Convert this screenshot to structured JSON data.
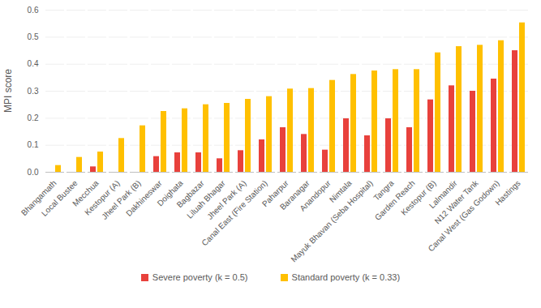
{
  "chart_data": {
    "type": "bar",
    "ylabel": "MPI score",
    "categories": [
      "Bhangamath",
      "Local Bustee",
      "Mecchua",
      "Kestopur (A)",
      "Jheel Park (B)",
      "Dakhineswar",
      "Doighata",
      "Bagbazar",
      "Liluah Bhagar",
      "Jheel Park (A)",
      "Canal East (Fire Station)",
      "Paharpur",
      "Baranagar",
      "Anandopur",
      "Nimtala",
      "Mayuk Bhavan (Seba Hospital)",
      "Tangra",
      "Garden Reach",
      "Kestopur (B)",
      "Lalmandir",
      "N12 Water Tank",
      "Canal West (Gas Godown)",
      "Hastings"
    ],
    "series": [
      {
        "name": "Severe poverty (k = 0.5)",
        "color": "#e8413c",
        "values": [
          0,
          0,
          0.02,
          0,
          0,
          0.058,
          0.072,
          0.072,
          0.05,
          0.08,
          0.12,
          0.165,
          0.14,
          0.082,
          0.198,
          0.135,
          0.198,
          0.165,
          0.268,
          0.32,
          0.3,
          0.345,
          0.45
        ]
      },
      {
        "name": "Standard poverty (k = 0.33)",
        "color": "#ffc000",
        "values": [
          0.025,
          0.055,
          0.075,
          0.125,
          0.172,
          0.225,
          0.235,
          0.25,
          0.255,
          0.27,
          0.28,
          0.308,
          0.31,
          0.34,
          0.362,
          0.375,
          0.38,
          0.38,
          0.442,
          0.465,
          0.47,
          0.487,
          0.553
        ]
      }
    ],
    "ylim": [
      0,
      0.6
    ],
    "yticks": [
      {
        "value": 0,
        "label": "0.0"
      },
      0.1,
      0.2,
      0.3,
      0.4,
      0.5,
      0.6
    ],
    "grid": true,
    "legend": "bottom"
  }
}
